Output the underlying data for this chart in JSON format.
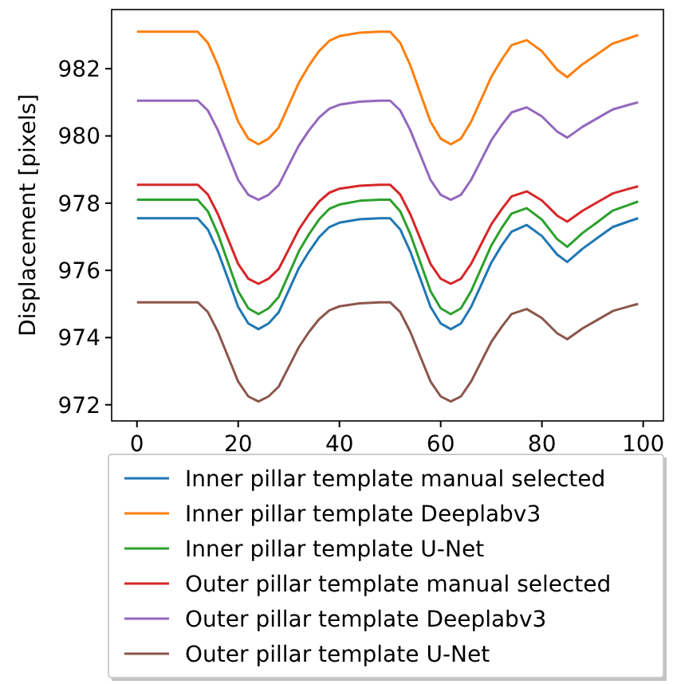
{
  "chart_data": {
    "type": "line",
    "ylabel": "Displacement [pixels]",
    "xlim": [
      -5,
      104
    ],
    "ylim": [
      971.52,
      983.76
    ],
    "xticks": [
      0,
      20,
      40,
      60,
      80,
      100
    ],
    "yticks": [
      972,
      974,
      976,
      978,
      980,
      982
    ],
    "legend": "bottom",
    "grid": false,
    "x": [
      0,
      4,
      8,
      12,
      14,
      16,
      18,
      20,
      22,
      24,
      26,
      28,
      30,
      32,
      34,
      36,
      38,
      40,
      44,
      48,
      50,
      52,
      54,
      56,
      58,
      60,
      62,
      64,
      66,
      68,
      70,
      72,
      74,
      77,
      80,
      83,
      85,
      88,
      91,
      94,
      97,
      99
    ],
    "series": [
      {
        "name": "Inner pillar template manual selected",
        "color": "#1f77b4",
        "values": [
          977.55,
          977.55,
          977.55,
          977.55,
          977.22,
          976.56,
          975.74,
          974.91,
          974.42,
          974.25,
          974.42,
          974.75,
          975.41,
          976.07,
          976.56,
          976.99,
          977.29,
          977.42,
          977.52,
          977.55,
          977.55,
          977.22,
          976.56,
          975.74,
          974.91,
          974.42,
          974.25,
          974.42,
          974.91,
          975.57,
          976.23,
          976.73,
          977.15,
          977.35,
          977.02,
          976.47,
          976.25,
          976.64,
          976.97,
          977.29,
          977.45,
          977.55
        ]
      },
      {
        "name": "Inner pillar template Deeplabv3",
        "color": "#ff7f0e",
        "values": [
          983.1,
          983.1,
          983.1,
          983.1,
          982.77,
          982.1,
          981.26,
          980.42,
          979.92,
          979.75,
          979.92,
          980.25,
          980.92,
          981.59,
          982.1,
          982.53,
          982.83,
          982.97,
          983.07,
          983.1,
          983.1,
          982.77,
          982.1,
          981.26,
          980.42,
          979.92,
          979.75,
          979.92,
          980.42,
          981.09,
          981.76,
          982.26,
          982.7,
          982.85,
          982.52,
          981.97,
          981.75,
          982.13,
          982.44,
          982.75,
          982.9,
          983.0
        ]
      },
      {
        "name": "Inner pillar template U-Net",
        "color": "#2ca02c",
        "values": [
          978.1,
          978.1,
          978.1,
          978.1,
          977.76,
          977.08,
          976.23,
          975.38,
          974.87,
          974.7,
          974.87,
          975.21,
          975.89,
          976.57,
          977.08,
          977.52,
          977.83,
          977.96,
          978.07,
          978.1,
          978.1,
          977.76,
          977.08,
          976.23,
          975.38,
          974.87,
          974.7,
          974.87,
          975.38,
          976.06,
          976.74,
          977.25,
          977.69,
          977.85,
          977.51,
          976.93,
          976.7,
          977.11,
          977.44,
          977.78,
          977.94,
          978.05
        ]
      },
      {
        "name": "Outer pillar template manual selected",
        "color": "#d62728",
        "values": [
          978.55,
          978.55,
          978.55,
          978.55,
          978.26,
          977.67,
          976.93,
          976.19,
          975.75,
          975.6,
          975.75,
          976.04,
          976.63,
          977.22,
          977.67,
          978.05,
          978.31,
          978.43,
          978.52,
          978.55,
          978.55,
          978.26,
          977.67,
          976.93,
          976.19,
          975.75,
          975.6,
          975.75,
          976.19,
          976.78,
          977.37,
          977.81,
          978.2,
          978.35,
          978.08,
          977.63,
          977.45,
          977.77,
          978.03,
          978.29,
          978.42,
          978.5
        ]
      },
      {
        "name": "Outer pillar template Deeplabv3",
        "color": "#9467bd",
        "values": [
          981.05,
          981.05,
          981.05,
          981.05,
          980.76,
          980.17,
          979.43,
          978.69,
          978.25,
          978.1,
          978.25,
          978.54,
          979.13,
          979.72,
          980.17,
          980.55,
          980.81,
          980.93,
          981.02,
          981.05,
          981.05,
          980.76,
          980.17,
          979.43,
          978.69,
          978.25,
          978.1,
          978.25,
          978.69,
          979.28,
          979.87,
          980.31,
          980.7,
          980.85,
          980.58,
          980.13,
          979.95,
          980.27,
          980.53,
          980.79,
          980.92,
          981.0
        ]
      },
      {
        "name": "Outer pillar template U-Net",
        "color": "#8c564b",
        "values": [
          975.05,
          975.05,
          975.05,
          975.05,
          974.76,
          974.17,
          973.43,
          972.69,
          972.25,
          972.1,
          972.25,
          972.54,
          973.13,
          973.72,
          974.17,
          974.55,
          974.81,
          974.93,
          975.02,
          975.05,
          975.05,
          974.76,
          974.17,
          973.43,
          972.69,
          972.25,
          972.1,
          972.25,
          972.69,
          973.28,
          973.87,
          974.31,
          974.7,
          974.85,
          974.58,
          974.13,
          973.95,
          974.27,
          974.53,
          974.79,
          974.92,
          975.0
        ]
      }
    ]
  }
}
